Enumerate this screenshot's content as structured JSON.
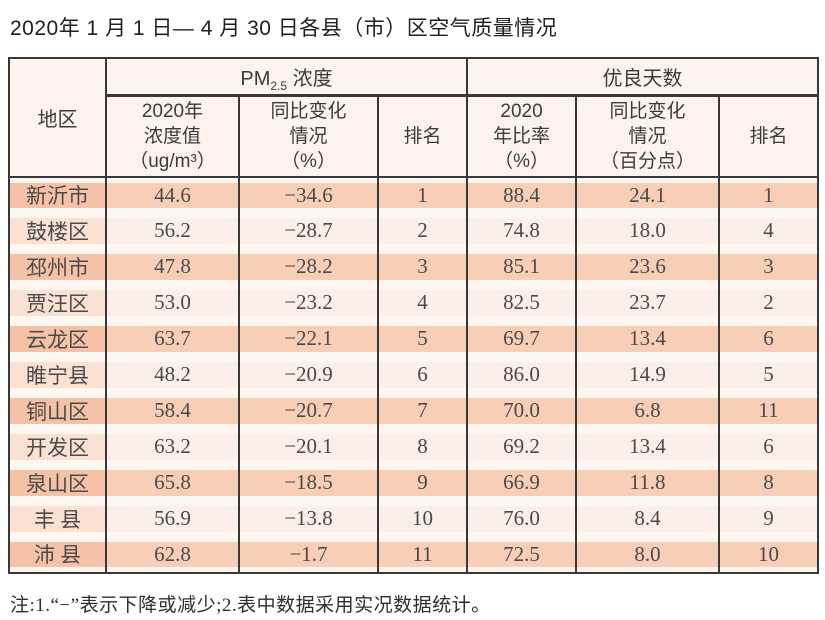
{
  "page": {
    "title": "2020年 1 月 1 日— 4 月 30 日各县（市）区空气质量情况",
    "footnote": "注:1.“−”表示下降或减少;2.表中数据采用实况数据统计。"
  },
  "table": {
    "corner_header": "地区",
    "pm_group": {
      "prefix": "PM",
      "sub": "2.5",
      "suffix": " 浓度"
    },
    "good_group_label": "优良天数",
    "sub_headers": {
      "pm_value": "2020年\n浓度值\n（ug/m³）",
      "pm_change": "同比变化\n情况\n（%）",
      "pm_rank": "排名",
      "good_ratio": "2020\n年比率\n（%）",
      "good_change": "同比变化\n情况\n（百分点）",
      "good_rank": "排名"
    },
    "rows": [
      {
        "region": "新沂市",
        "pm_value": "44.6",
        "pm_change": "−34.6",
        "pm_rank": "1",
        "good_ratio": "88.4",
        "good_change": "24.1",
        "good_rank": "1"
      },
      {
        "region": "鼓楼区",
        "pm_value": "56.2",
        "pm_change": "−28.7",
        "pm_rank": "2",
        "good_ratio": "74.8",
        "good_change": "18.0",
        "good_rank": "4"
      },
      {
        "region": "邳州市",
        "pm_value": "47.8",
        "pm_change": "−28.2",
        "pm_rank": "3",
        "good_ratio": "85.1",
        "good_change": "23.6",
        "good_rank": "3"
      },
      {
        "region": "贾汪区",
        "pm_value": "53.0",
        "pm_change": "−23.2",
        "pm_rank": "4",
        "good_ratio": "82.5",
        "good_change": "23.7",
        "good_rank": "2"
      },
      {
        "region": "云龙区",
        "pm_value": "63.7",
        "pm_change": "−22.1",
        "pm_rank": "5",
        "good_ratio": "69.7",
        "good_change": "13.4",
        "good_rank": "6"
      },
      {
        "region": "睢宁县",
        "pm_value": "48.2",
        "pm_change": "−20.9",
        "pm_rank": "6",
        "good_ratio": "86.0",
        "good_change": "14.9",
        "good_rank": "5"
      },
      {
        "region": "铜山区",
        "pm_value": "58.4",
        "pm_change": "−20.7",
        "pm_rank": "7",
        "good_ratio": "70.0",
        "good_change": "6.8",
        "good_rank": "11"
      },
      {
        "region": "开发区",
        "pm_value": "63.2",
        "pm_change": "−20.1",
        "pm_rank": "8",
        "good_ratio": "69.2",
        "good_change": "13.4",
        "good_rank": "6"
      },
      {
        "region": "泉山区",
        "pm_value": "65.8",
        "pm_change": "−18.5",
        "pm_rank": "9",
        "good_ratio": "66.9",
        "good_change": "11.8",
        "good_rank": "8"
      },
      {
        "region": "丰 县",
        "pm_value": "56.9",
        "pm_change": "−13.8",
        "pm_rank": "10",
        "good_ratio": "76.0",
        "good_change": "8.4",
        "good_rank": "9"
      },
      {
        "region": "沛 县",
        "pm_value": "62.8",
        "pm_change": "−1.7",
        "pm_rank": "11",
        "good_ratio": "72.5",
        "good_change": "8.0",
        "good_rank": "10"
      }
    ],
    "colors": {
      "border": "#383838",
      "header_bg": "#fdf3ec",
      "odd_row_band": "#f8ceb7",
      "odd_region_band": "#f5c2a7",
      "even_row_band": "#fcefe8",
      "even_region_band": "#fbe1d4",
      "row_gap": "#fdf6f1"
    }
  }
}
